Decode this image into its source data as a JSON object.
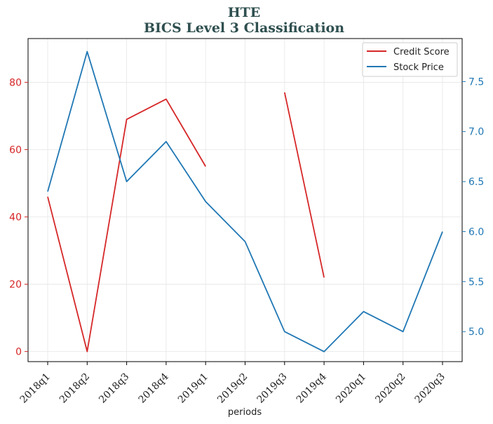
{
  "chart_data": {
    "type": "line",
    "title": "HTE",
    "subtitle": "BICS Level 3 Classification",
    "xlabel": "periods",
    "ylabel": "",
    "categories": [
      "2018q1",
      "2018q2",
      "2018q3",
      "2018q4",
      "2019q1",
      "2019q2",
      "2019q3",
      "2019q4",
      "2020q1",
      "2020q2",
      "2020q3"
    ],
    "series": [
      {
        "name": "Credit Score",
        "axis": "left",
        "color": "#d62728",
        "values": [
          46,
          0,
          69,
          75,
          55,
          null,
          77,
          22,
          null,
          null,
          null
        ]
      },
      {
        "name": "Stock Price",
        "axis": "right",
        "color": "#1f77b4",
        "values": [
          6.4,
          7.8,
          6.5,
          6.9,
          6.3,
          5.9,
          5.0,
          4.8,
          5.2,
          5.0,
          6.0
        ]
      }
    ],
    "left_axis": {
      "ylim": [
        -3,
        93
      ],
      "ticks": [
        0,
        20,
        40,
        60,
        80
      ],
      "color": "#d62728"
    },
    "right_axis": {
      "ylim": [
        4.7,
        7.93
      ],
      "ticks": [
        "5.0",
        "5.5",
        "6.0",
        "6.5",
        "7.0",
        "7.5"
      ],
      "color": "#1f77b4"
    },
    "grid": true,
    "legend": "top-right"
  }
}
